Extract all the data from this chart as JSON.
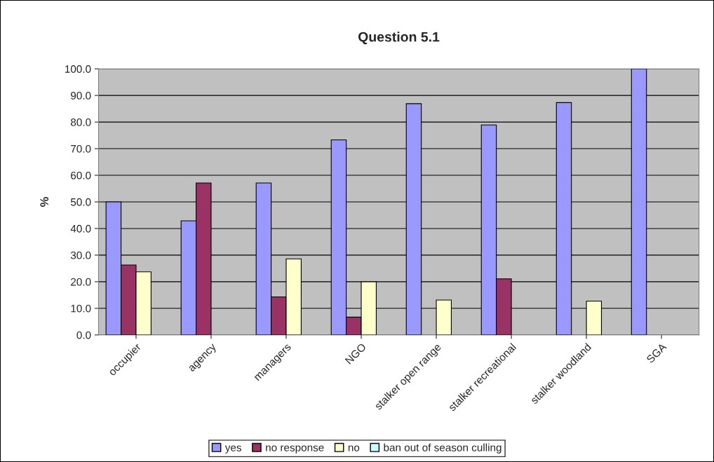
{
  "chart_data": {
    "type": "bar",
    "title": "Question 5.1",
    "ylabel": "%",
    "categories": [
      "occupier",
      "agency",
      "managers",
      "NGO",
      "stalker open range",
      "stalker recreational",
      "stalker woodland",
      "SGA"
    ],
    "series": [
      {
        "name": "yes",
        "color": "#9999ff",
        "values": [
          50.0,
          42.9,
          57.1,
          73.3,
          86.9,
          78.9,
          87.3,
          100.0
        ]
      },
      {
        "name": "no response",
        "color": "#993366",
        "values": [
          26.3,
          57.1,
          14.3,
          6.7,
          null,
          21.1,
          null,
          null
        ]
      },
      {
        "name": "no",
        "color": "#ffffcc",
        "values": [
          23.7,
          null,
          28.6,
          20.0,
          13.1,
          null,
          12.7,
          null
        ]
      },
      {
        "name": "ban out of season culling",
        "color": "#ccffff",
        "values": [
          null,
          null,
          null,
          null,
          null,
          null,
          null,
          null
        ]
      }
    ],
    "ylim": [
      0,
      100
    ],
    "yticks": [
      {
        "value": 0,
        "label": "0.0"
      },
      {
        "value": 10,
        "label": "10.0"
      },
      {
        "value": 20,
        "label": "20.0"
      },
      {
        "value": 30,
        "label": "30.0"
      },
      {
        "value": 40,
        "label": "40.0"
      },
      {
        "value": 50,
        "label": "50.0"
      },
      {
        "value": 60,
        "label": "60.0"
      },
      {
        "value": 70,
        "label": "70.0"
      },
      {
        "value": 80,
        "label": "80.0"
      },
      {
        "value": 90,
        "label": "90.0"
      },
      {
        "value": 100,
        "label": "100.0"
      }
    ],
    "grid": "y",
    "legend": "bottom"
  }
}
